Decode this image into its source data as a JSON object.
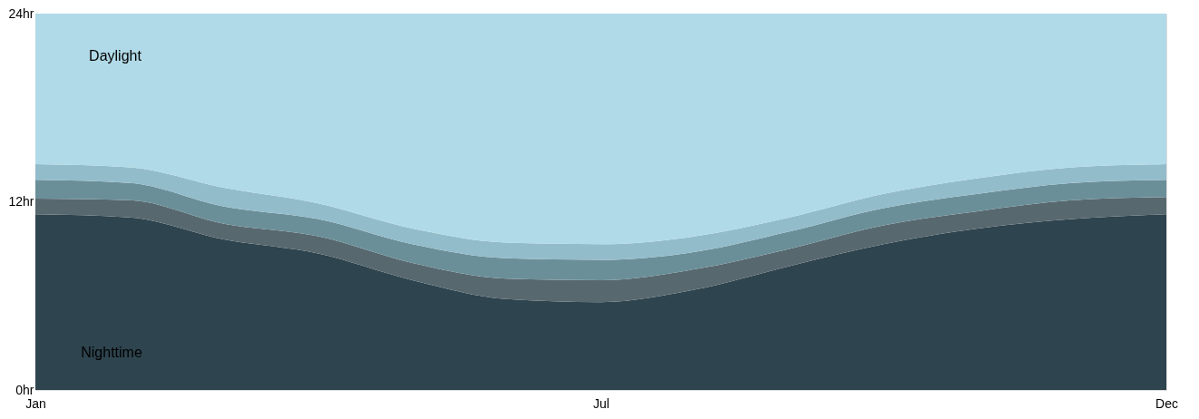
{
  "chart_data": {
    "type": "area",
    "stacked": true,
    "categories": [
      "Jan",
      null,
      null,
      null,
      null,
      null,
      "Jul",
      null,
      null,
      null,
      null,
      null,
      "Dec"
    ],
    "ylim": [
      0,
      24
    ],
    "yticks": [
      {
        "value": 0,
        "label": "0hr"
      },
      {
        "value": 12,
        "label": "12hr"
      },
      {
        "value": 24,
        "label": "24hr"
      }
    ],
    "series": [
      {
        "color": "#2e444e",
        "values": [
          11.2,
          11.0,
          9.6,
          8.7,
          7.0,
          5.8,
          5.6,
          6.4,
          7.9,
          9.3,
          10.3,
          10.9,
          11.2
        ]
      },
      {
        "color": "#58686f",
        "values": [
          1.0,
          1.1,
          1.0,
          1.1,
          1.1,
          1.3,
          1.4,
          1.3,
          1.1,
          1.2,
          1.1,
          1.2,
          1.1
        ]
      },
      {
        "color": "#6b8f99",
        "values": [
          1.2,
          1.1,
          1.1,
          1.1,
          1.2,
          1.3,
          1.3,
          1.1,
          1.1,
          1.1,
          1.1,
          1.1,
          1.1
        ]
      },
      {
        "color": "#93bccb",
        "values": [
          1.0,
          1.0,
          1.2,
          1.0,
          1.0,
          1.0,
          1.0,
          1.0,
          0.9,
          0.9,
          1.0,
          1.0,
          1.0
        ]
      },
      {
        "color": "#b0dae7",
        "values": [
          9.6,
          9.8,
          11.1,
          12.1,
          13.7,
          14.6,
          14.7,
          14.2,
          13.0,
          11.5,
          10.5,
          9.8,
          9.6
        ]
      }
    ],
    "annotations": [
      "Daylight",
      "Nighttime"
    ],
    "grid": false
  }
}
